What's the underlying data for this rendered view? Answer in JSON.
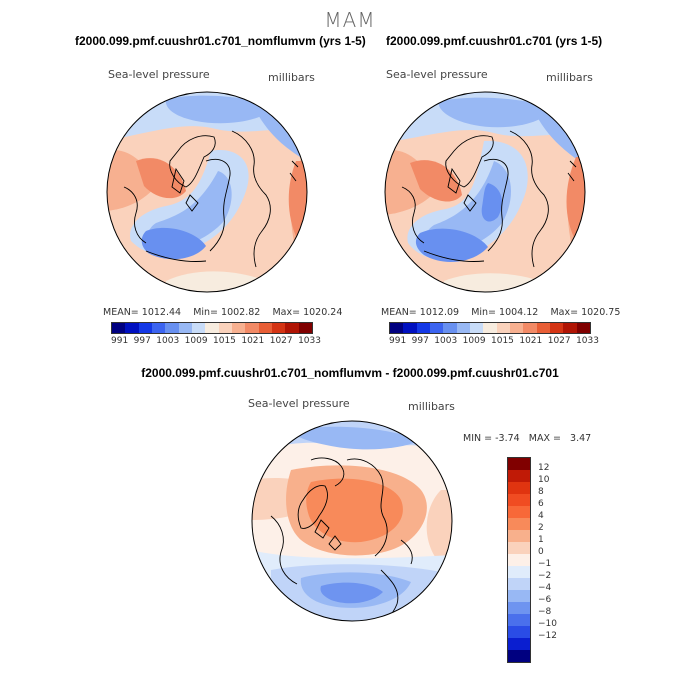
{
  "season": "MAM",
  "panels": [
    {
      "title": "f2000.099.pmf.cuushr01.c701_nomflumvm (yrs 1-5)",
      "field": "Sea-level pressure",
      "units": "millibars",
      "mean_label": "MEAN=",
      "mean": "1012.44",
      "min_label": "Min=",
      "min": "1002.82",
      "max_label": "Max=",
      "max": "1020.24"
    },
    {
      "title": "f2000.099.pmf.cuushr01.c701 (yrs 1-5)",
      "field": "Sea-level pressure",
      "units": "millibars",
      "mean_label": "MEAN=",
      "mean": "1012.09",
      "min_label": "Min=",
      "min": "1004.12",
      "max_label": "Max=",
      "max": "1020.75"
    }
  ],
  "abs_colorbar": {
    "colors": [
      "#000080",
      "#0010c0",
      "#1438e6",
      "#3c64f0",
      "#6890f0",
      "#98b8f4",
      "#c8dcf8",
      "#f7ecdf",
      "#fad2bc",
      "#f7b090",
      "#f28a66",
      "#e85e36",
      "#d43414",
      "#b01404",
      "#800000"
    ],
    "tick_labels": [
      "991",
      "997",
      "1003",
      "1009",
      "1015",
      "1021",
      "1027",
      "1033"
    ]
  },
  "diff_panel": {
    "title": "f2000.099.pmf.cuushr01.c701_nomflumvm - f2000.099.pmf.cuushr01.c701",
    "field": "Sea-level pressure",
    "units": "millibars",
    "min_label": "MIN =",
    "min": "-3.74",
    "max_label": "MAX =",
    "max": "3.47"
  },
  "diff_colorbar": {
    "colors": [
      "#800000",
      "#c01a06",
      "#e03410",
      "#f04c22",
      "#f86838",
      "#f88a5a",
      "#f8b08c",
      "#fad2bc",
      "#fdf0e8",
      "#e0ecfb",
      "#c0d4f8",
      "#98b8f4",
      "#6e94f0",
      "#4a70ec",
      "#2a4ce6",
      "#0a1ed0",
      "#000080"
    ],
    "tick_labels": [
      "12",
      "10",
      "8",
      "6",
      "4",
      "2",
      "1",
      "0",
      "−1",
      "−2",
      "−4",
      "−6",
      "−8",
      "−10",
      "−12"
    ]
  }
}
